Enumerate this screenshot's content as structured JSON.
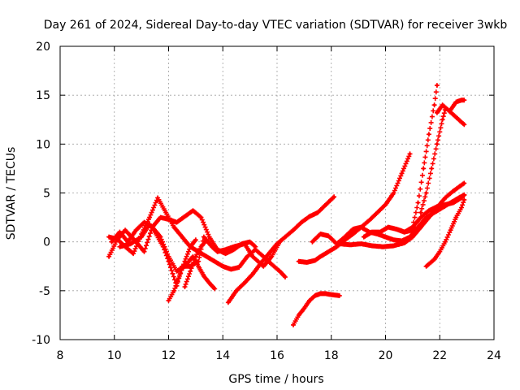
{
  "chart_data": {
    "type": "scatter",
    "title": "Day 261 of 2024, Sidereal Day-to-day VTEC variation (SDTVAR) for receiver 3wkb",
    "xlabel": "GPS time / hours",
    "ylabel": "SDTVAR / TECUs",
    "xlim": [
      8,
      24
    ],
    "ylim": [
      -10,
      20
    ],
    "xticks": [
      "8",
      "10",
      "12",
      "14",
      "16",
      "18",
      "20",
      "22",
      "24"
    ],
    "yticks": [
      "-10",
      "-5",
      "0",
      "5",
      "10",
      "15",
      "20"
    ],
    "grid": true,
    "marker": "plus",
    "color": "#ff0000",
    "series": [
      {
        "x": [
          9.8,
          10.1,
          10.4,
          10.7,
          11.0,
          11.3,
          11.6,
          11.9,
          12.2,
          12.5,
          12.8,
          13.1,
          13.4,
          13.7,
          14.0,
          14.3,
          14.6,
          14.9,
          15.2,
          15.5,
          15.8,
          16.1,
          16.3
        ],
        "y": [
          0.5,
          0.3,
          -0.5,
          -1.2,
          0.8,
          2.5,
          4.5,
          3.0,
          1.5,
          0.5,
          -0.5,
          -1.0,
          -1.5,
          -2.0,
          -2.5,
          -2.8,
          -2.6,
          -1.5,
          -0.8,
          -1.5,
          -2.3,
          -3.0,
          -3.6
        ]
      },
      {
        "x": [
          9.8,
          10.1,
          10.4,
          10.8,
          11.1,
          11.4,
          11.7,
          12.0,
          12.3,
          12.6,
          12.9,
          13.2,
          13.5,
          13.8,
          14.1,
          14.4,
          14.7,
          15.0,
          15.2
        ],
        "y": [
          -1.5,
          0.2,
          1.2,
          0.0,
          -1.0,
          1.5,
          2.5,
          2.3,
          2.0,
          2.6,
          3.2,
          2.5,
          0.5,
          -0.8,
          -1.2,
          -0.8,
          -0.2,
          0.0,
          -0.5
        ]
      },
      {
        "x": [
          9.9,
          10.2,
          10.5,
          10.8,
          11.1,
          11.4,
          11.7,
          12.0,
          12.3,
          12.6,
          12.9,
          13.1,
          13.3,
          13.5,
          13.7
        ],
        "y": [
          0.0,
          1.0,
          0.0,
          1.2,
          2.0,
          1.5,
          0.5,
          -1.5,
          -3.0,
          -2.5,
          -1.5,
          -2.5,
          -3.5,
          -4.2,
          -4.8
        ]
      },
      {
        "x": [
          10.2,
          10.6,
          11.0,
          11.3,
          11.5,
          11.8,
          12.0,
          12.3,
          12.5,
          12.8,
          13.1,
          13.3,
          13.6,
          13.8,
          14.1,
          14.4,
          14.8,
          15.1,
          15.5,
          15.8,
          16.1
        ],
        "y": [
          -0.5,
          -0.2,
          0.5,
          1.8,
          1.0,
          -0.5,
          -2.0,
          -4.5,
          -2.5,
          -2.5,
          -2.0,
          0.5,
          -0.5,
          -1.0,
          -0.8,
          -0.5,
          -0.2,
          -1.5,
          -2.5,
          -1.5,
          0.0
        ]
      },
      {
        "x": [
          12.0,
          12.2,
          12.4,
          12.6,
          12.8,
          13.0
        ],
        "y": [
          -6.0,
          -5.0,
          -3.5,
          -2.0,
          -0.5,
          0.2
        ]
      },
      {
        "x": [
          12.6,
          12.8,
          13.0,
          13.2,
          13.4
        ],
        "y": [
          -4.6,
          -3.0,
          -1.5,
          -0.5,
          0.2
        ]
      },
      {
        "x": [
          14.2,
          14.5,
          14.8,
          15.1,
          15.4,
          15.7,
          16.0,
          16.3,
          16.6,
          16.9,
          17.2,
          17.5,
          17.8,
          18.1
        ],
        "y": [
          -6.2,
          -5.0,
          -4.2,
          -3.3,
          -2.2,
          -1.2,
          -0.2,
          0.5,
          1.2,
          2.0,
          2.6,
          3.0,
          3.8,
          4.6
        ]
      },
      {
        "x": [
          16.6,
          16.8,
          17.0,
          17.2,
          17.4,
          17.6,
          17.8,
          18.0,
          18.3
        ],
        "y": [
          -8.5,
          -7.5,
          -6.8,
          -6.0,
          -5.5,
          -5.3,
          -5.3,
          -5.4,
          -5.5
        ]
      },
      {
        "x": [
          16.8,
          17.1,
          17.4,
          17.6,
          17.9,
          18.2,
          18.5,
          18.8,
          19.1,
          19.4,
          19.7,
          20.0,
          20.3,
          20.6,
          20.9
        ],
        "y": [
          -2.0,
          -2.1,
          -1.9,
          -1.5,
          -1.0,
          -0.5,
          0.2,
          0.8,
          1.5,
          2.2,
          3.0,
          3.8,
          5.0,
          7.0,
          9.0
        ]
      },
      {
        "x": [
          17.3,
          17.6,
          17.9,
          18.2,
          18.5,
          18.8,
          19.1,
          19.4,
          19.7,
          20.0,
          20.3,
          20.6,
          20.9,
          21.2,
          21.5,
          21.8,
          22.1,
          22.4,
          22.7,
          22.9
        ],
        "y": [
          0.0,
          0.8,
          0.6,
          -0.2,
          0.5,
          1.3,
          1.5,
          1.0,
          0.8,
          0.5,
          0.2,
          0.1,
          0.5,
          1.5,
          2.5,
          3.0,
          3.5,
          4.0,
          4.5,
          4.8
        ]
      },
      {
        "x": [
          18.3,
          18.7,
          19.1,
          19.5,
          19.9,
          20.3,
          20.7,
          21.0,
          21.3,
          21.6,
          21.9,
          22.2,
          22.5,
          22.9
        ],
        "y": [
          -0.2,
          -0.3,
          -0.2,
          -0.4,
          -0.5,
          -0.4,
          -0.1,
          0.5,
          1.5,
          2.5,
          3.5,
          4.5,
          5.2,
          6.0
        ]
      },
      {
        "x": [
          19.2,
          19.5,
          19.8,
          20.1,
          20.4,
          20.7,
          21.0,
          21.3
        ],
        "y": [
          0.5,
          1.0,
          1.0,
          1.5,
          1.3,
          1.0,
          1.2,
          1.5
        ]
      },
      {
        "x": [
          20.4,
          20.7,
          21.0,
          21.3,
          21.6,
          21.9,
          22.2,
          22.5,
          22.8,
          22.9
        ],
        "y": [
          1.3,
          1.0,
          1.5,
          2.5,
          3.2,
          3.6,
          3.8,
          4.0,
          4.5,
          4.8
        ]
      },
      {
        "x": [
          21.0,
          21.2,
          21.4,
          21.6,
          21.8,
          21.9
        ],
        "y": [
          1.5,
          4.0,
          7.5,
          11.0,
          14.0,
          16.0
        ]
      },
      {
        "x": [
          21.3,
          21.5,
          21.7,
          21.9,
          22.1,
          22.2
        ],
        "y": [
          3.0,
          5.0,
          7.5,
          10.0,
          12.5,
          13.5
        ]
      },
      {
        "x": [
          21.9,
          22.1,
          22.3,
          22.5,
          22.7,
          22.9
        ],
        "y": [
          13.2,
          14.0,
          13.5,
          13.0,
          12.5,
          12.0
        ]
      },
      {
        "x": [
          22.4,
          22.6,
          22.8,
          22.9
        ],
        "y": [
          13.5,
          14.3,
          14.5,
          14.5
        ]
      },
      {
        "x": [
          21.5,
          21.8,
          22.0,
          22.2,
          22.4,
          22.6,
          22.8,
          22.9
        ],
        "y": [
          -2.5,
          -1.8,
          -1.0,
          0.0,
          1.2,
          2.5,
          3.5,
          4.3
        ]
      }
    ]
  }
}
